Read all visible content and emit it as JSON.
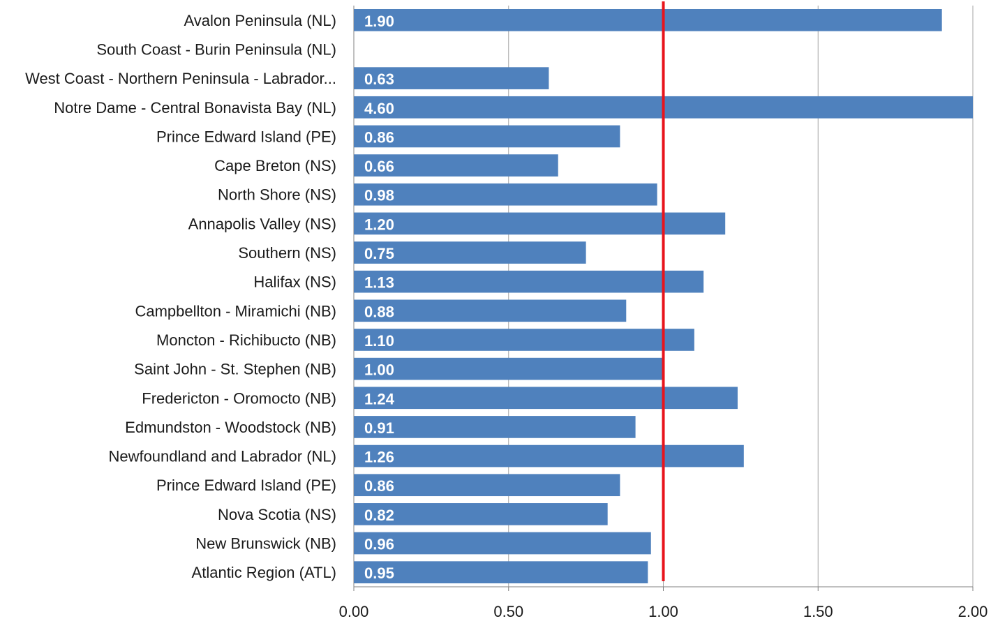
{
  "chart_data": {
    "type": "bar",
    "orientation": "horizontal",
    "categories": [
      "Avalon Peninsula (NL)",
      "South Coast - Burin Peninsula (NL)",
      "West Coast - Northern Peninsula - Labrador...",
      "Notre Dame - Central Bonavista Bay (NL)",
      "Prince Edward Island (PE)",
      "Cape Breton (NS)",
      "North Shore (NS)",
      "Annapolis Valley (NS)",
      "Southern (NS)",
      "Halifax (NS)",
      "Campbellton - Miramichi (NB)",
      "Moncton - Richibucto (NB)",
      "Saint John - St. Stephen (NB)",
      "Fredericton - Oromocto (NB)",
      "Edmundston - Woodstock (NB)",
      "Newfoundland and Labrador (NL)",
      "Prince Edward Island (PE)",
      "Nova Scotia (NS)",
      "New Brunswick (NB)",
      "Atlantic Region (ATL)"
    ],
    "values": [
      1.9,
      null,
      0.63,
      4.6,
      0.86,
      0.66,
      0.98,
      1.2,
      0.75,
      1.13,
      0.88,
      1.1,
      1.0,
      1.24,
      0.91,
      1.26,
      0.86,
      0.82,
      0.96,
      0.95
    ],
    "data_labels": [
      "1.90",
      "",
      "0.63",
      "4.60",
      "0.86",
      "0.66",
      "0.98",
      "1.20",
      "0.75",
      "1.13",
      "0.88",
      "1.10",
      "1.00",
      "1.24",
      "0.91",
      "1.26",
      "0.86",
      "0.82",
      "0.96",
      "0.95"
    ],
    "xlim": [
      0,
      2
    ],
    "x_ticks": [
      0,
      0.5,
      1,
      1.5,
      2
    ],
    "x_tick_labels": [
      "0.00",
      "0.50",
      "1.00",
      "1.50",
      "2.00"
    ],
    "reference_line": {
      "value": 1.0,
      "color": "#e8141b"
    },
    "bar_color": "#4f81bd",
    "grid": true,
    "gridline_color": "#a6a6a6",
    "title": "",
    "xlabel": "",
    "ylabel": ""
  }
}
